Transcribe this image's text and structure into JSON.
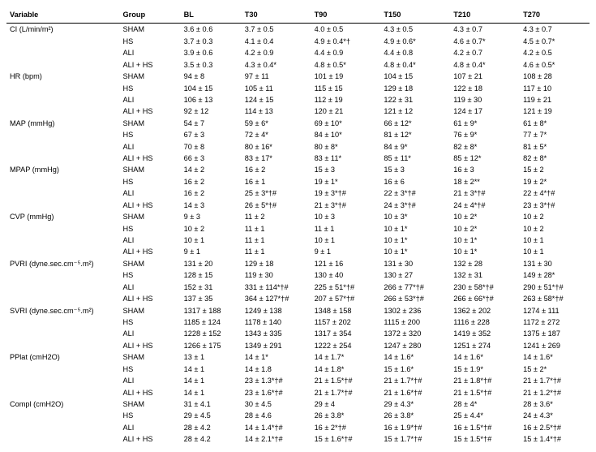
{
  "columns": [
    "Variable",
    "Group",
    "BL",
    "T30",
    "T90",
    "T150",
    "T210",
    "T270"
  ],
  "variables": [
    {
      "name": "CI (L/min/m²)",
      "rows": [
        {
          "group": "SHAM",
          "vals": [
            "3.6 ± 0.6",
            "3.7 ± 0.5",
            "4.0 ± 0.5",
            "4.3 ± 0.5",
            "4.3 ± 0.7",
            "4.3 ± 0.7"
          ]
        },
        {
          "group": "HS",
          "vals": [
            "3.7 ± 0.3",
            "4.1 ± 0.4",
            "4.9 ± 0.4*†",
            "4.9 ± 0.6*",
            "4.6 ± 0.7*",
            "4.5 ± 0.7*"
          ]
        },
        {
          "group": "ALI",
          "vals": [
            "3.9 ± 0.6",
            "4.2 ± 0.9",
            "4.4 ± 0.9",
            "4.4 ± 0.8",
            "4.2 ± 0.7",
            "4.2 ± 0.5"
          ]
        },
        {
          "group": "ALI + HS",
          "vals": [
            "3.5 ± 0.3",
            "4.3 ± 0.4*",
            "4.8 ± 0.5*",
            "4.8 ± 0.4*",
            "4.8 ± 0.4*",
            "4.6 ± 0.5*"
          ]
        }
      ]
    },
    {
      "name": "HR (bpm)",
      "rows": [
        {
          "group": "SHAM",
          "vals": [
            "94 ± 8",
            "97 ± 11",
            "101 ± 19",
            "104 ± 15",
            "107 ± 21",
            "108 ± 28"
          ]
        },
        {
          "group": "HS",
          "vals": [
            "104 ± 15",
            "105 ± 11",
            "115 ± 15",
            "129 ± 18",
            "122 ± 18",
            "117 ± 10"
          ]
        },
        {
          "group": "ALI",
          "vals": [
            "106 ± 13",
            "124 ± 15",
            "112 ± 19",
            "122 ± 31",
            "119 ± 30",
            "119 ± 21"
          ]
        },
        {
          "group": "ALI + HS",
          "vals": [
            "92 ± 12",
            "114 ± 13",
            "120 ± 21",
            "121 ± 12",
            "124 ± 17",
            "121 ± 19"
          ]
        }
      ]
    },
    {
      "name": "MAP (mmHg)",
      "rows": [
        {
          "group": "SHAM",
          "vals": [
            "54 ± 7",
            "59 ± 6*",
            "69 ± 10*",
            "66 ± 12*",
            "61 ± 9*",
            "61 ± 8*"
          ]
        },
        {
          "group": "HS",
          "vals": [
            "67 ± 3",
            "72 ± 4*",
            "84 ± 10*",
            "81 ± 12*",
            "76 ± 9*",
            "77 ± 7*"
          ]
        },
        {
          "group": "ALI",
          "vals": [
            "70 ± 8",
            "80 ± 16*",
            "80 ± 8*",
            "84 ± 9*",
            "82 ± 8*",
            "81 ± 5*"
          ]
        },
        {
          "group": "ALI + HS",
          "vals": [
            "66 ± 3",
            "83 ± 17*",
            "83 ± 11*",
            "85 ± 11*",
            "85 ± 12*",
            "82 ± 8*"
          ]
        }
      ]
    },
    {
      "name": "MPAP (mmHg)",
      "rows": [
        {
          "group": "SHAM",
          "vals": [
            "14 ± 2",
            "16 ± 2",
            "15 ± 3",
            "15 ± 3",
            "16 ± 3",
            "15 ± 2"
          ]
        },
        {
          "group": "HS",
          "vals": [
            "16 ± 2",
            "16 ± 1",
            "19 ± 1*",
            "16 ± 6",
            "18 ± 2**",
            "19 ± 2*"
          ]
        },
        {
          "group": "ALI",
          "vals": [
            "16 ± 2",
            "25 ± 3*†#",
            "19 ± 3*†#",
            "22 ± 3*†#",
            "21 ± 3*†#",
            "22 ± 4*†#"
          ]
        },
        {
          "group": "ALI + HS",
          "vals": [
            "14 ± 3",
            "26 ± 5*†#",
            "21 ± 3*†#",
            "24 ± 3*†#",
            "24 ± 4*†#",
            "23 ± 3*†#"
          ]
        }
      ]
    },
    {
      "name": "CVP (mmHg)",
      "rows": [
        {
          "group": "SHAM",
          "vals": [
            "9 ± 3",
            "11 ± 2",
            "10 ± 3",
            "10 ± 3*",
            "10 ± 2*",
            "10 ± 2"
          ]
        },
        {
          "group": "HS",
          "vals": [
            "10 ± 2",
            "11 ± 1",
            "11 ± 1",
            "10 ± 1*",
            "10 ± 2*",
            "10 ± 2"
          ]
        },
        {
          "group": "ALI",
          "vals": [
            "10 ± 1",
            "11 ± 1",
            "10 ± 1",
            "10 ± 1*",
            "10 ± 1*",
            "10 ± 1"
          ]
        },
        {
          "group": "ALI + HS",
          "vals": [
            "9 ± 1",
            "11 ± 1",
            "9 ± 1",
            "10 ± 1*",
            "10 ± 1*",
            "10 ± 1"
          ]
        }
      ]
    },
    {
      "name": "PVRI (dyne.sec.cm⁻⁵.m²)",
      "rows": [
        {
          "group": "SHAM",
          "vals": [
            "131 ± 20",
            "129 ± 18",
            "121 ± 16",
            "131 ± 30",
            "132 ± 28",
            "131 ± 30"
          ]
        },
        {
          "group": "HS",
          "vals": [
            "128 ± 15",
            "119 ± 30",
            "130 ± 40",
            "130 ± 27",
            "132 ± 31",
            "149 ± 28*"
          ]
        },
        {
          "group": "ALI",
          "vals": [
            "152 ± 31",
            "331 ± 114*†#",
            "225 ± 51*†#",
            "266 ± 77*†#",
            "230 ± 58*†#",
            "290 ± 51*†#"
          ]
        },
        {
          "group": "ALI + HS",
          "vals": [
            "137 ± 35",
            "364 ± 127*†#",
            "207 ± 57*†#",
            "266 ± 53*†#",
            "266 ± 66*†#",
            "263 ± 58*†#"
          ]
        }
      ]
    },
    {
      "name": "SVRI (dyne.sec.cm⁻⁵.m²)",
      "rows": [
        {
          "group": "SHAM",
          "vals": [
            "1317 ± 188",
            "1249 ± 138",
            "1348 ± 158",
            "1302 ± 236",
            "1362 ± 202",
            "1274 ± 111"
          ]
        },
        {
          "group": "HS",
          "vals": [
            "1185 ± 124",
            "1178 ± 140",
            "1157 ± 202",
            "1115 ± 200",
            "1116 ± 228",
            "1172 ± 272"
          ]
        },
        {
          "group": "ALI",
          "vals": [
            "1228 ± 152",
            "1343 ± 335",
            "1317 ± 354",
            "1372 ± 320",
            "1419 ± 352",
            "1375 ± 187"
          ]
        },
        {
          "group": "ALI + HS",
          "vals": [
            "1266 ± 175",
            "1349 ± 291",
            "1222 ± 254",
            "1247 ± 280",
            "1251 ± 274",
            "1241 ± 269"
          ]
        }
      ]
    },
    {
      "name": "PPlat (cmH2O)",
      "rows": [
        {
          "group": "SHAM",
          "vals": [
            "13 ± 1",
            "14 ± 1*",
            "14 ± 1.7*",
            "14 ± 1.6*",
            "14 ± 1.6*",
            "14 ± 1.6*"
          ]
        },
        {
          "group": "HS",
          "vals": [
            "14 ± 1",
            "14 ± 1.8",
            "14 ± 1.8*",
            "15 ± 1.6*",
            "15 ± 1.9*",
            "15 ± 2*"
          ]
        },
        {
          "group": "ALI",
          "vals": [
            "14 ± 1",
            "23 ± 1.3*†#",
            "21 ± 1.5*†#",
            "21 ± 1.7*†#",
            "21 ± 1.8*†#",
            "21 ± 1.7*†#"
          ]
        },
        {
          "group": "ALI + HS",
          "vals": [
            "14 ± 1",
            "23 ± 1.6*†#",
            "21 ± 1.7*†#",
            "21 ± 1.6*†#",
            "21 ± 1.5*†#",
            "21 ± 1.2*†#"
          ]
        }
      ]
    },
    {
      "name": "Compl (cmH2O)",
      "rows": [
        {
          "group": "SHAM",
          "vals": [
            "31 ± 4.1",
            "30 ± 4.5",
            "29 ± 4",
            "29 ± 4.3*",
            "28 ± 4*",
            "28 ± 3.6*"
          ]
        },
        {
          "group": "HS",
          "vals": [
            "29 ± 4.5",
            "28 ± 4.6",
            "26 ± 3.8*",
            "26 ± 3.8*",
            "25 ± 4.4*",
            "24 ± 4.3*"
          ]
        },
        {
          "group": "ALI",
          "vals": [
            "28 ± 4.2",
            "14 ± 1.4*†#",
            "16 ± 2*†#",
            "16 ± 1.9*†#",
            "16 ± 1.5*†#",
            "16 ± 2.5*†#"
          ]
        },
        {
          "group": "ALI + HS",
          "vals": [
            "28 ± 4.2",
            "14 ± 2.1*†#",
            "15 ± 1.6*†#",
            "15 ± 1.7*†#",
            "15 ± 1.5*†#",
            "15 ± 1.4*†#"
          ]
        }
      ]
    }
  ]
}
